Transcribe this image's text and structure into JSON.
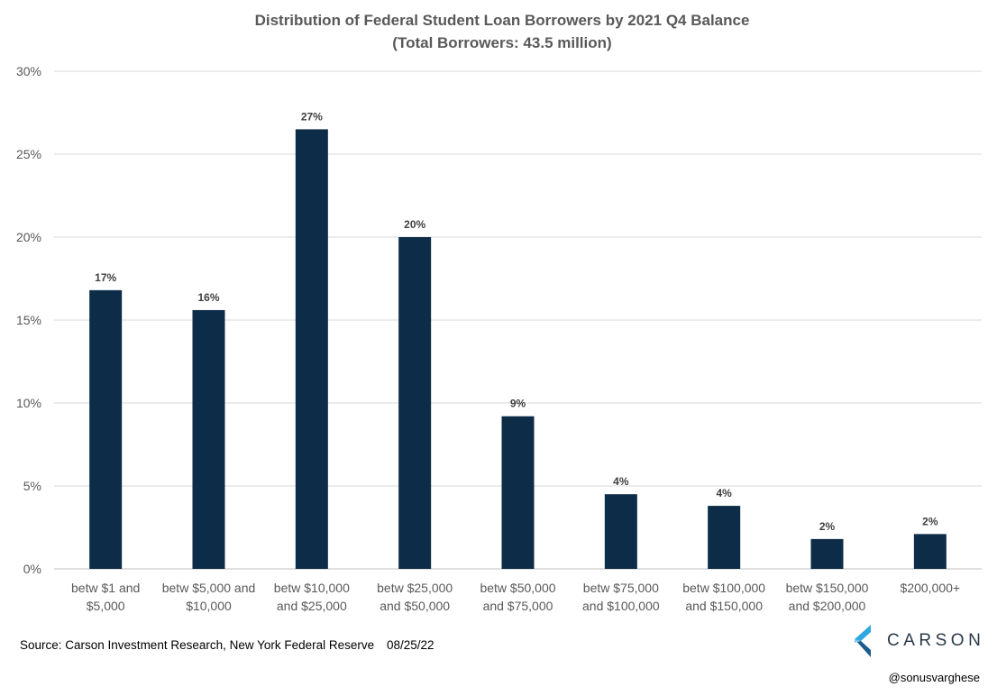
{
  "chart_data": {
    "type": "bar",
    "title": "Distribution of Federal Student Loan Borrowers by 2021 Q4 Balance",
    "subtitle": "(Total Borrowers: 43.5 million)",
    "xlabel": "",
    "ylabel": "",
    "ylim": [
      0,
      30
    ],
    "yticks": [
      "0%",
      "5%",
      "10%",
      "15%",
      "20%",
      "25%",
      "30%"
    ],
    "ytick_values": [
      0,
      5,
      10,
      15,
      20,
      25,
      30
    ],
    "grid": true,
    "legend": "none",
    "bar_color": "#0d2c47",
    "categories": [
      [
        "betw $1 and",
        "$5,000"
      ],
      [
        "betw $5,000 and",
        "$10,000"
      ],
      [
        "betw $10,000",
        "and $25,000"
      ],
      [
        "betw $25,000",
        "and $50,000"
      ],
      [
        "betw $50,000",
        "and $75,000"
      ],
      [
        "betw $75,000",
        "and $100,000"
      ],
      [
        "betw $100,000",
        "and $150,000"
      ],
      [
        "betw $150,000",
        "and $200,000"
      ],
      [
        "$200,000+"
      ]
    ],
    "values": [
      16.8,
      15.6,
      26.5,
      20.0,
      9.2,
      4.5,
      3.8,
      1.8,
      2.1
    ],
    "data_labels": [
      "17%",
      "16%",
      "27%",
      "20%",
      "9%",
      "4%",
      "4%",
      "2%",
      "2%"
    ]
  },
  "footer": {
    "source": "Source: Carson Investment Research, New York Federal Reserve",
    "date": "08/25/22",
    "brand": "CARSON",
    "handle": "@sonusvarghese"
  },
  "colors": {
    "bar": "#0d2c47",
    "grid": "#d9d9d9",
    "axis_text": "#595959",
    "logo_light": "#2ea8e0",
    "logo_dark": "#1a5c8c"
  }
}
